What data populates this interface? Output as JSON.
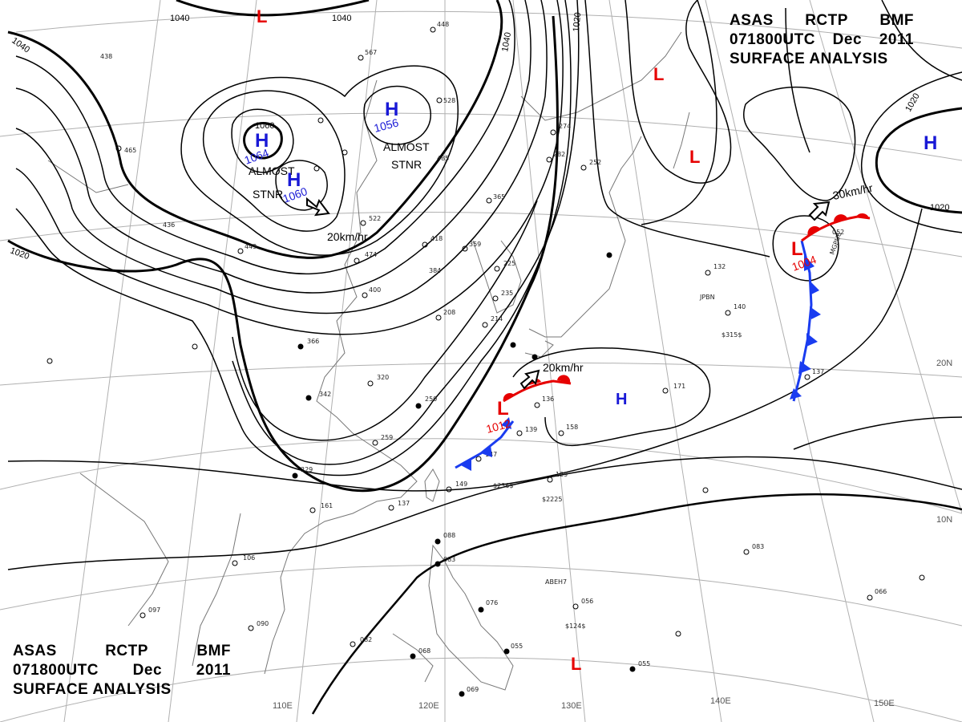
{
  "title": {
    "agency": "ASAS",
    "station": "RCTP",
    "office": "BMF",
    "datetime": "071800UTC",
    "month": "Dec",
    "year": "2011",
    "chart_name": "SURFACE ANALYSIS"
  },
  "longitudes": [
    "110E",
    "120E",
    "130E",
    "140E",
    "150E"
  ],
  "latitudes": [
    "20N",
    "10N"
  ],
  "isobar_labels": {
    "l1040a": "1040",
    "l1040b": "1040",
    "l1040c": "1040",
    "l1040d": "1040",
    "l1020a": "1020",
    "l1020b": "1020",
    "l1020c": "1020",
    "l1020d": "1020",
    "l1060": "1060"
  },
  "pressure_centers": [
    {
      "type": "H",
      "value": "1064",
      "note": "ALMOST STNR"
    },
    {
      "type": "H",
      "value": "1060",
      "note": "ALMOST STNR"
    },
    {
      "type": "H",
      "value": "1056",
      "note": "ALMOST STNR"
    },
    {
      "type": "L",
      "value": "1012"
    },
    {
      "type": "L",
      "value": "1004"
    },
    {
      "type": "H"
    },
    {
      "type": "H"
    },
    {
      "type": "L"
    },
    {
      "type": "L"
    },
    {
      "type": "L"
    },
    {
      "type": "L"
    }
  ],
  "notes": {
    "almost": "ALMOST",
    "stnr": "STNR"
  },
  "motion_vectors": {
    "m1": "20km/hr",
    "m2": "20km/hr",
    "m3": "30km/hr"
  },
  "station_codes": {
    "jpbn": "JPBN",
    "abeh7": "ABEH7",
    "mgpu": "MGPU6",
    "s315": "$315$",
    "s236": "$236$",
    "s2225": "$2225",
    "s124": "$124$"
  },
  "station_obs": [
    "448",
    "567",
    "438",
    "465",
    "528",
    "359",
    "384",
    "418",
    "365",
    "485",
    "522",
    "474",
    "449",
    "436",
    "400",
    "366",
    "342",
    "320",
    "250",
    "259",
    "229",
    "161",
    "137",
    "106",
    "097",
    "090",
    "082",
    "068",
    "088",
    "083",
    "076",
    "055",
    "069",
    "147",
    "149",
    "139",
    "158",
    "129",
    "136",
    "225",
    "235",
    "208",
    "214",
    "132",
    "140",
    "137",
    "171",
    "083",
    "066",
    "052",
    "056",
    "055",
    "282",
    "274",
    "252"
  ],
  "colors": {
    "isobar": "#000000",
    "high": "#1919d6",
    "low": "#e60000",
    "cold_front": "#1a3cf0",
    "warm_front": "#e60000",
    "grid": "#b0b0b0",
    "coast": "#777777"
  }
}
